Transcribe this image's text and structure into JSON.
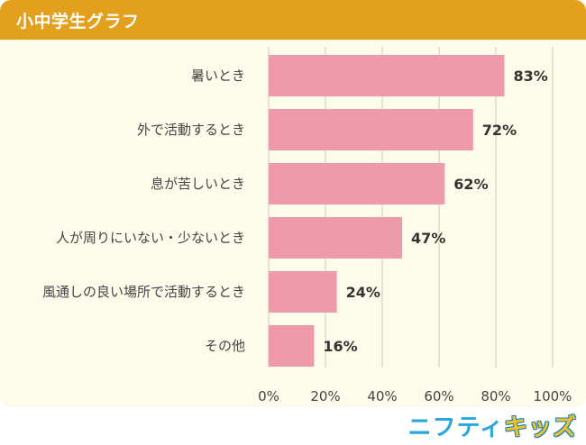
{
  "header": {
    "title": "小中学生グラフ"
  },
  "brand": {
    "logo_part1": "ニフティ",
    "logo_part2": "キッズ"
  },
  "colors": {
    "header": "#e2a01c",
    "background": "#fdfbe9",
    "bar": "#ee9aab",
    "grid": "#cfcdb8"
  },
  "chart_data": {
    "type": "bar",
    "orientation": "horizontal",
    "categories": [
      "暑いとき",
      "外で活動するとき",
      "息が苦しいとき",
      "人が周りにいない・少ないとき",
      "風通しの良い場所で活動するとき",
      "その他"
    ],
    "values": [
      83,
      72,
      62,
      47,
      24,
      16
    ],
    "value_labels": [
      "83%",
      "72%",
      "62%",
      "47%",
      "24%",
      "16%"
    ],
    "xlim": [
      0,
      100
    ],
    "x_ticks": [
      "0%",
      "20%",
      "40%",
      "60%",
      "80%",
      "100%"
    ],
    "grid": true
  }
}
